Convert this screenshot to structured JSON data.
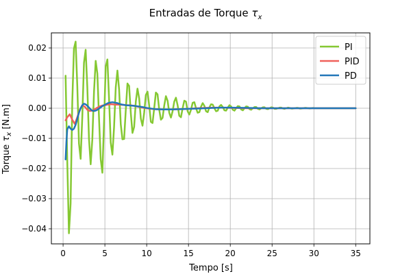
{
  "chart_data": {
    "type": "line",
    "title": "Entradas de Torque ",
    "title_symbol": "τ",
    "title_symbol_sub": "x",
    "xlabel": "Tempo [s]",
    "ylabel_prefix": "Torque  ",
    "ylabel_symbol": "τ",
    "ylabel_symbol_sub": "x",
    "ylabel_suffix": " [N.m]",
    "xlim": [
      -1.4,
      36.7
    ],
    "ylim": [
      -0.045,
      0.025
    ],
    "xticks": [
      0,
      5,
      10,
      15,
      20,
      25,
      30,
      35
    ],
    "xtick_labels": [
      "0",
      "5",
      "10",
      "15",
      "20",
      "25",
      "30",
      "35"
    ],
    "yticks": [
      -0.04,
      -0.03,
      -0.02,
      -0.01,
      0.0,
      0.01,
      0.02
    ],
    "ytick_labels": [
      "−0.04",
      "−0.03",
      "−0.02",
      "−0.01",
      "0.00",
      "0.01",
      "0.02"
    ],
    "grid": true,
    "legend_position": "top-right",
    "series": [
      {
        "name": "PI",
        "color": "#85c832",
        "x": [
          0.3,
          0.5,
          0.7,
          0.9,
          1.1,
          1.3,
          1.5,
          1.7,
          1.9,
          2.1,
          2.3,
          2.5,
          2.7,
          2.9,
          3.1,
          3.3,
          3.5,
          3.7,
          3.9,
          4.1,
          4.3,
          4.5,
          4.7,
          4.9,
          5.1,
          5.3,
          5.5,
          5.7,
          5.9,
          6.1,
          6.3,
          6.5,
          6.7,
          6.9,
          7.1,
          7.3,
          7.5,
          7.7,
          7.9,
          8.1,
          8.3,
          8.5,
          8.7,
          8.9,
          9.1,
          9.3,
          9.5,
          9.7,
          9.9,
          10.1,
          10.3,
          10.5,
          10.7,
          10.9,
          11.1,
          11.3,
          11.5,
          11.7,
          11.9,
          12.1,
          12.3,
          12.5,
          12.7,
          12.9,
          13.1,
          13.3,
          13.5,
          13.7,
          13.9,
          14.1,
          14.3,
          14.5,
          14.7,
          14.9,
          15.1,
          15.3,
          15.5,
          15.7,
          15.9,
          16.1,
          16.3,
          16.5,
          16.7,
          16.9,
          17.1,
          17.3,
          17.5,
          17.7,
          17.9,
          18.1,
          18.3,
          18.5,
          18.7,
          18.9,
          19.1,
          19.3,
          19.5,
          19.7,
          19.9,
          20.1,
          20.3,
          20.5,
          20.7,
          20.9,
          21.1,
          21.3,
          21.5,
          21.7,
          21.9,
          22.1,
          22.3,
          22.5,
          22.7,
          22.9,
          23.1,
          23.3,
          23.5,
          23.7,
          23.9,
          24.1,
          24.3,
          24.5,
          24.7,
          24.9,
          25.1,
          25.3,
          25.5,
          25.7,
          25.9,
          26.1,
          26.3,
          26.5,
          26.7,
          26.9,
          27.1,
          27.3,
          27.5,
          27.7,
          27.9,
          28.1,
          28.3,
          28.5,
          28.7,
          28.9,
          29.1,
          29.3,
          29.5,
          29.7,
          29.9,
          30.1,
          30.3,
          30.5,
          30.7,
          30.9,
          31.1,
          31.3,
          31.5,
          31.7,
          31.9,
          32.1,
          32.3,
          32.5,
          32.7,
          32.9,
          33.1,
          33.3,
          33.5,
          33.7,
          33.9,
          34.1,
          34.3,
          34.5,
          34.7,
          34.9,
          35.0
        ],
        "y": [
          0.0108,
          -0.0175,
          -0.0415,
          -0.0316,
          0.0021,
          0.0198,
          0.0221,
          0.0075,
          -0.0117,
          -0.0168,
          -0.0028,
          0.0151,
          0.0194,
          0.0069,
          -0.0102,
          -0.0186,
          -0.0103,
          0.0055,
          0.0157,
          0.0115,
          -0.0033,
          -0.0169,
          -0.0214,
          -0.0045,
          0.0138,
          0.0162,
          0.0031,
          -0.0114,
          -0.0154,
          -0.0062,
          0.0069,
          0.0125,
          0.0063,
          -0.0053,
          -0.0103,
          -0.0102,
          -0.0006,
          0.0082,
          0.0074,
          -0.0016,
          -0.0082,
          -0.0062,
          0.0022,
          0.0065,
          0.0033,
          -0.0034,
          -0.0058,
          -0.0015,
          0.0044,
          0.0055,
          0.0009,
          -0.0045,
          -0.0049,
          0.0,
          0.0052,
          0.0046,
          -0.0005,
          -0.0038,
          -0.0032,
          0.0009,
          0.004,
          0.0025,
          -0.0015,
          -0.0031,
          -0.001,
          0.0022,
          0.0035,
          0.001,
          -0.0025,
          -0.003,
          0.0,
          0.0025,
          0.0022,
          -0.001,
          -0.0021,
          -0.0005,
          0.0018,
          0.002,
          0.0,
          -0.0015,
          -0.0013,
          0.0005,
          0.0017,
          0.0008,
          -0.001,
          -0.0013,
          0.0003,
          0.0013,
          0.0012,
          0.0,
          -0.001,
          -0.0008,
          0.0006,
          0.0011,
          0.0004,
          -0.0007,
          -0.0008,
          0.0002,
          0.001,
          0.0006,
          -0.0005,
          -0.0008,
          0.0,
          0.0007,
          0.0006,
          -0.0004,
          -0.0007,
          0.0,
          0.0006,
          0.0005,
          -0.0003,
          -0.0005,
          0.0,
          0.0004,
          0.0004,
          -0.0002,
          -0.0004,
          0.0,
          0.0003,
          0.0003,
          -0.0002,
          -0.0003,
          0.0,
          0.0003,
          0.0002,
          -0.0002,
          -0.0002,
          0.0,
          0.0002,
          0.0002,
          -0.0001,
          -0.0002,
          0.0,
          0.0002,
          0.0001,
          -0.0001,
          -0.0001,
          0.0,
          0.0001,
          0.0001,
          -0.0001,
          -0.0001,
          0.0,
          0.0001,
          0.0001,
          0.0,
          -0.0001,
          0.0,
          0.0001,
          0.0,
          0.0,
          0.0,
          0.0,
          0.0,
          0.0,
          0.0,
          0.0,
          0.0,
          0.0,
          0.0,
          0.0,
          0.0,
          0.0,
          0.0,
          0.0,
          0.0,
          0.0,
          0.0,
          0.0,
          0.0,
          0.0,
          0.0,
          0.0,
          0.0,
          0.0
        ]
      },
      {
        "name": "PID",
        "color": "#f0605a",
        "x": [
          0.3,
          0.5,
          0.8,
          1.1,
          1.4,
          1.7,
          2.0,
          2.3,
          2.6,
          2.9,
          3.2,
          3.5,
          3.8,
          4.1,
          4.4,
          4.7,
          5.0,
          5.3,
          5.6,
          5.9,
          6.2,
          6.5,
          6.8,
          7.1,
          7.4,
          7.7,
          8.0,
          8.5,
          9.0,
          9.5,
          10.0,
          10.5,
          11.0,
          12.0,
          13.0,
          14.0,
          15.0,
          16.0,
          17.0,
          18.0,
          19.0,
          20.0,
          22.0,
          24.0,
          26.0,
          28.0,
          30.0,
          32.0,
          34.0,
          35.0
        ],
        "y": [
          -0.004,
          -0.003,
          -0.002,
          -0.0038,
          -0.0052,
          -0.003,
          -0.0005,
          0.001,
          0.0005,
          -0.0005,
          -0.0009,
          -0.0008,
          -0.0003,
          0.0002,
          0.0006,
          0.0009,
          0.001,
          0.0012,
          0.0013,
          0.0013,
          0.0012,
          0.0012,
          0.0012,
          0.0011,
          0.0011,
          0.001,
          0.001,
          0.0008,
          0.0005,
          0.0002,
          0.0,
          -0.0002,
          -0.0003,
          -0.0004,
          -0.0004,
          -0.0003,
          -0.0002,
          0.0,
          0.0001,
          0.0002,
          0.0002,
          0.0001,
          0.0,
          0.0,
          0.0,
          0.0,
          0.0,
          0.0,
          0.0,
          0.0
        ]
      },
      {
        "name": "PD",
        "color": "#2277b8",
        "x": [
          0.3,
          0.4,
          0.5,
          0.7,
          0.9,
          1.1,
          1.3,
          1.5,
          1.7,
          1.9,
          2.1,
          2.3,
          2.5,
          2.7,
          2.9,
          3.1,
          3.3,
          3.5,
          3.7,
          3.9,
          4.1,
          4.3,
          4.5,
          4.7,
          4.9,
          5.1,
          5.3,
          5.5,
          5.7,
          5.9,
          6.1,
          6.3,
          6.5,
          6.7,
          6.9,
          7.1,
          7.5,
          8.0,
          8.5,
          9.0,
          9.5,
          10.0,
          10.5,
          11.0,
          12.0,
          13.0,
          14.0,
          15.0,
          16.0,
          17.0,
          18.0,
          19.0,
          20.0,
          22.0,
          24.0,
          26.0,
          28.0,
          30.0,
          32.0,
          34.0,
          35.0
        ],
        "y": [
          -0.017,
          -0.011,
          -0.007,
          -0.006,
          -0.0068,
          -0.0072,
          -0.0068,
          -0.0055,
          -0.0035,
          -0.0015,
          0.0,
          0.001,
          0.0015,
          0.0013,
          0.0008,
          0.0002,
          -0.0004,
          -0.0008,
          -0.0009,
          -0.0008,
          -0.0005,
          -0.0001,
          0.0003,
          0.0007,
          0.001,
          0.0013,
          0.0016,
          0.0018,
          0.0019,
          0.002,
          0.0019,
          0.0018,
          0.0017,
          0.0015,
          0.0013,
          0.0012,
          0.001,
          0.0009,
          0.0008,
          0.0006,
          0.0004,
          0.0001,
          -0.0001,
          -0.0003,
          -0.0004,
          -0.0004,
          -0.0003,
          -0.0002,
          -0.0001,
          0.0,
          0.0001,
          0.0002,
          0.0002,
          0.0001,
          0.0,
          0.0,
          0.0,
          0.0,
          0.0,
          0.0,
          0.0
        ]
      }
    ]
  }
}
